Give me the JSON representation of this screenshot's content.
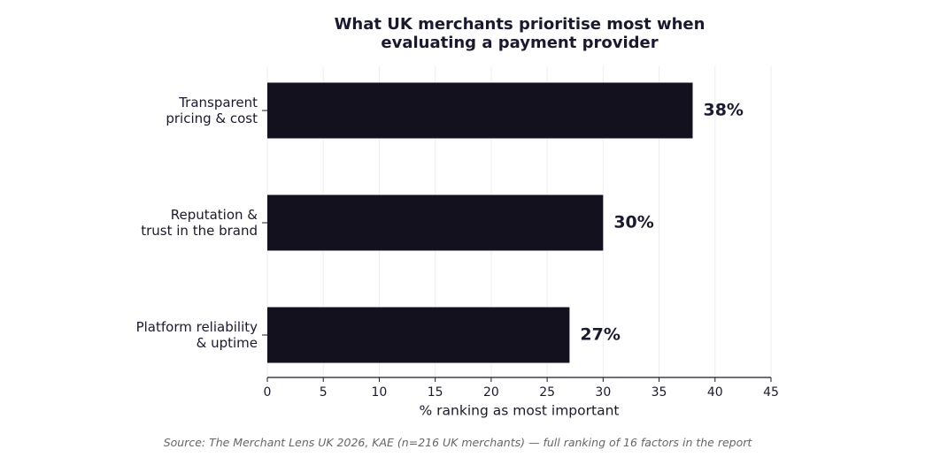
{
  "chart_data": {
    "type": "barh",
    "title": "What UK merchants prioritise most when\nevaluating a payment provider",
    "categories": [
      "Transparent\npricing & cost",
      "Reputation &\ntrust in the brand",
      "Platform reliability\n& uptime"
    ],
    "values": [
      38,
      30,
      27
    ],
    "value_labels": [
      "38%",
      "30%",
      "27%"
    ],
    "color": "#12111d",
    "xlabel": "% ranking as most important",
    "xlim": [
      0,
      45
    ],
    "xticks": [
      0,
      5,
      10,
      15,
      20,
      25,
      30,
      35,
      40,
      45
    ],
    "grid": true,
    "source": "Source: The Merchant Lens UK 2026, KAE (n=216 UK merchants) — full ranking of 16 factors in the report"
  }
}
